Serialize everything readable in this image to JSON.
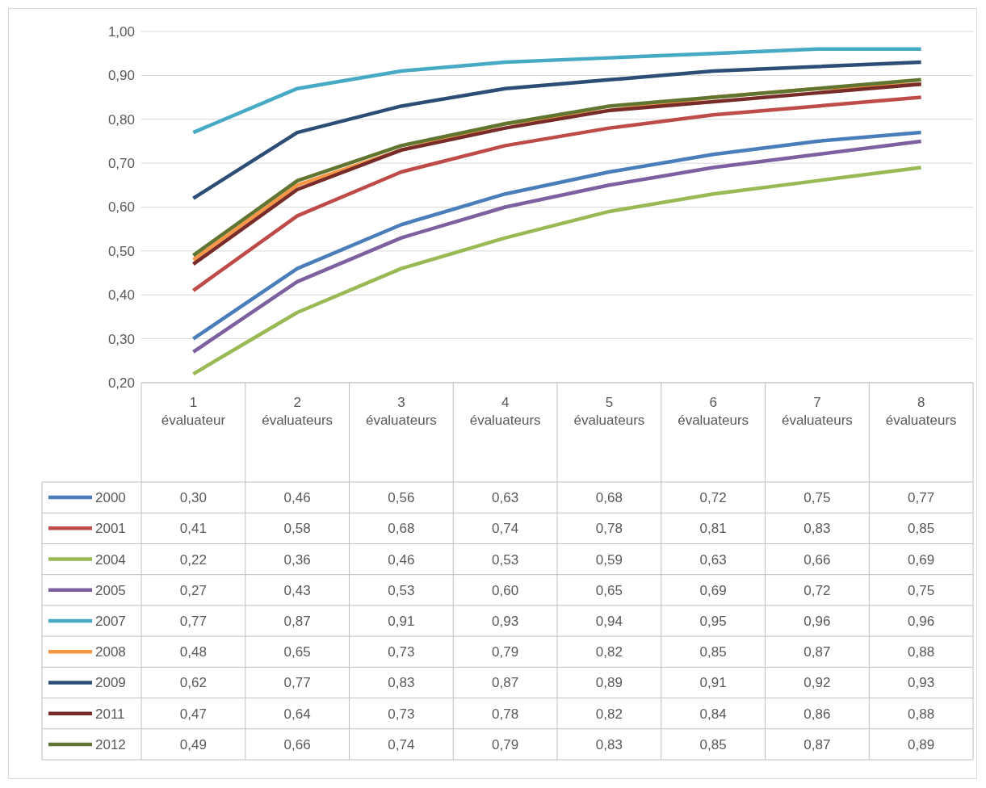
{
  "chart_data": {
    "type": "line",
    "categories": [
      "1 évaluateur",
      "2 évaluateurs",
      "3 évaluateurs",
      "4 évaluateurs",
      "5 évaluateurs",
      "6 évaluateurs",
      "7 évaluateurs",
      "8 évaluateurs"
    ],
    "series": [
      {
        "name": "2000",
        "color": "#4a7ebb",
        "values": [
          0.3,
          0.46,
          0.56,
          0.63,
          0.68,
          0.72,
          0.75,
          0.77
        ],
        "value_labels": [
          "0,30",
          "0,46",
          "0,56",
          "0,63",
          "0,68",
          "0,72",
          "0,75",
          "0,77"
        ]
      },
      {
        "name": "2001",
        "color": "#be4b48",
        "values": [
          0.41,
          0.58,
          0.68,
          0.74,
          0.78,
          0.81,
          0.83,
          0.85
        ],
        "value_labels": [
          "0,41",
          "0,58",
          "0,68",
          "0,74",
          "0,78",
          "0,81",
          "0,83",
          "0,85"
        ]
      },
      {
        "name": "2004",
        "color": "#98b954",
        "values": [
          0.22,
          0.36,
          0.46,
          0.53,
          0.59,
          0.63,
          0.66,
          0.69
        ],
        "value_labels": [
          "0,22",
          "0,36",
          "0,46",
          "0,53",
          "0,59",
          "0,63",
          "0,66",
          "0,69"
        ]
      },
      {
        "name": "2005",
        "color": "#7d60a0",
        "values": [
          0.27,
          0.43,
          0.53,
          0.6,
          0.65,
          0.69,
          0.72,
          0.75
        ],
        "value_labels": [
          "0,27",
          "0,43",
          "0,53",
          "0,60",
          "0,65",
          "0,69",
          "0,72",
          "0,75"
        ]
      },
      {
        "name": "2007",
        "color": "#46aac5",
        "values": [
          0.77,
          0.87,
          0.91,
          0.93,
          0.94,
          0.95,
          0.96,
          0.96
        ],
        "value_labels": [
          "0,77",
          "0,87",
          "0,91",
          "0,93",
          "0,94",
          "0,95",
          "0,96",
          "0,96"
        ]
      },
      {
        "name": "2008",
        "color": "#f79646",
        "values": [
          0.48,
          0.65,
          0.73,
          0.79,
          0.82,
          0.85,
          0.87,
          0.88
        ],
        "value_labels": [
          "0,48",
          "0,65",
          "0,73",
          "0,79",
          "0,82",
          "0,85",
          "0,87",
          "0,88"
        ]
      },
      {
        "name": "2009",
        "color": "#2c4d75",
        "values": [
          0.62,
          0.77,
          0.83,
          0.87,
          0.89,
          0.91,
          0.92,
          0.93
        ],
        "value_labels": [
          "0,62",
          "0,77",
          "0,83",
          "0,87",
          "0,89",
          "0,91",
          "0,92",
          "0,93"
        ]
      },
      {
        "name": "2011",
        "color": "#772c2a",
        "values": [
          0.47,
          0.64,
          0.73,
          0.78,
          0.82,
          0.84,
          0.86,
          0.88
        ],
        "value_labels": [
          "0,47",
          "0,64",
          "0,73",
          "0,78",
          "0,82",
          "0,84",
          "0,86",
          "0,88"
        ]
      },
      {
        "name": "2012",
        "color": "#5f7530",
        "values": [
          0.49,
          0.66,
          0.74,
          0.79,
          0.83,
          0.85,
          0.87,
          0.89
        ],
        "value_labels": [
          "0,49",
          "0,66",
          "0,74",
          "0,79",
          "0,83",
          "0,85",
          "0,87",
          "0,89"
        ]
      }
    ],
    "ylim": [
      0.2,
      1.0
    ],
    "yticks": [
      {
        "value": 0.2,
        "label": "0,20"
      },
      {
        "value": 0.3,
        "label": "0,30"
      },
      {
        "value": 0.4,
        "label": "0,40"
      },
      {
        "value": 0.5,
        "label": "0,50"
      },
      {
        "value": 0.6,
        "label": "0,60"
      },
      {
        "value": 0.7,
        "label": "0,70"
      },
      {
        "value": 0.8,
        "label": "0,80"
      },
      {
        "value": 0.9,
        "label": "0,90"
      },
      {
        "value": 1.0,
        "label": "1,00"
      }
    ],
    "grid": "y",
    "legend": "bottom",
    "line_style": "solid"
  }
}
